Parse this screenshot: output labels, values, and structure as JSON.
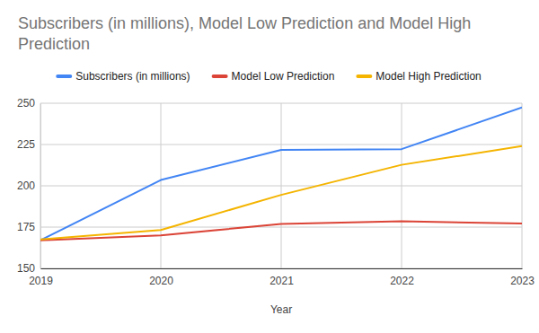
{
  "chart_data": {
    "type": "line",
    "title": "Subscribers (in millions), Model Low Prediction and Model High Prediction",
    "x_label": "Year",
    "x": [
      2019,
      2020,
      2021,
      2022,
      2023
    ],
    "series": [
      {
        "name": "Subscribers (in millions)",
        "color": "#4285f4",
        "values": [
          167,
          203.5,
          221.7,
          222.2,
          247.4
        ]
      },
      {
        "name": "Model Low Prediction",
        "color": "#db4437",
        "values": [
          167,
          170,
          176.9,
          178.5,
          177.2
        ]
      },
      {
        "name": "Model High Prediction",
        "color": "#f4b400",
        "values": [
          167.5,
          173.2,
          194.5,
          212.7,
          224
        ]
      }
    ],
    "xlim": [
      2019,
      2023
    ],
    "xticks": [
      2019,
      2020,
      2021,
      2022,
      2023
    ],
    "ylim": [
      150,
      250
    ],
    "yticks": [
      150,
      175,
      200,
      225,
      250
    ],
    "grid": true,
    "legend": "top"
  }
}
